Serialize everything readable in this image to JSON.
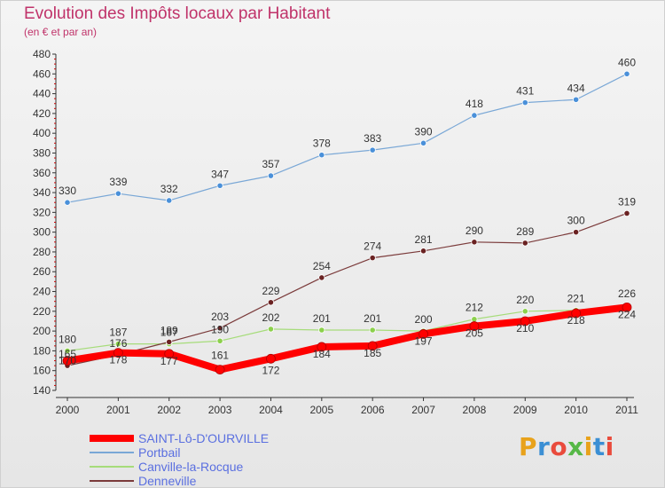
{
  "header": {
    "title": "Evolution des Impôts locaux par Habitant",
    "subtitle": "(en € et par an)"
  },
  "brand": {
    "text": "Proxiti",
    "colors": [
      "#e8a21b",
      "#3b8fd4",
      "#e94b3c",
      "#56b847",
      "#e8a21b",
      "#3b8fd4",
      "#e94b3c"
    ]
  },
  "chart_data": {
    "type": "line",
    "title": "Evolution des Impôts locaux par Habitant",
    "subtitle": "(en € et par an)",
    "x": [
      "2000",
      "2001",
      "2002",
      "2003",
      "2004",
      "2005",
      "2006",
      "2007",
      "2008",
      "2009",
      "2010",
      "2011"
    ],
    "ylim": [
      140,
      480
    ],
    "yticks": [
      140,
      160,
      180,
      200,
      220,
      240,
      260,
      280,
      300,
      320,
      340,
      360,
      380,
      400,
      420,
      440,
      460,
      480
    ],
    "grid": false,
    "legend": "bottom-left",
    "series": [
      {
        "name": "SAINT-Lô-D'OURVILLE",
        "color": "#ff0000",
        "width": 8,
        "values": [
          170,
          178,
          177,
          161,
          172,
          184,
          185,
          197,
          205,
          210,
          218,
          224
        ]
      },
      {
        "name": "Portbail",
        "color": "#79a7d6",
        "marker": "#4a90d9",
        "width": 1.2,
        "values": [
          330,
          339,
          332,
          347,
          357,
          378,
          383,
          390,
          418,
          431,
          434,
          460
        ]
      },
      {
        "name": "Canville-la-Rocque",
        "color": "#a6dc7a",
        "marker": "#8cd04c",
        "width": 1.2,
        "values": [
          180,
          187,
          187,
          190,
          202,
          201,
          201,
          200,
          212,
          220,
          221,
          226
        ]
      },
      {
        "name": "Denneville",
        "color": "#7b3b3b",
        "marker": "#6a2222",
        "width": 1.2,
        "values": [
          165,
          176,
          189,
          203,
          229,
          254,
          274,
          281,
          290,
          289,
          300,
          319
        ]
      }
    ]
  }
}
